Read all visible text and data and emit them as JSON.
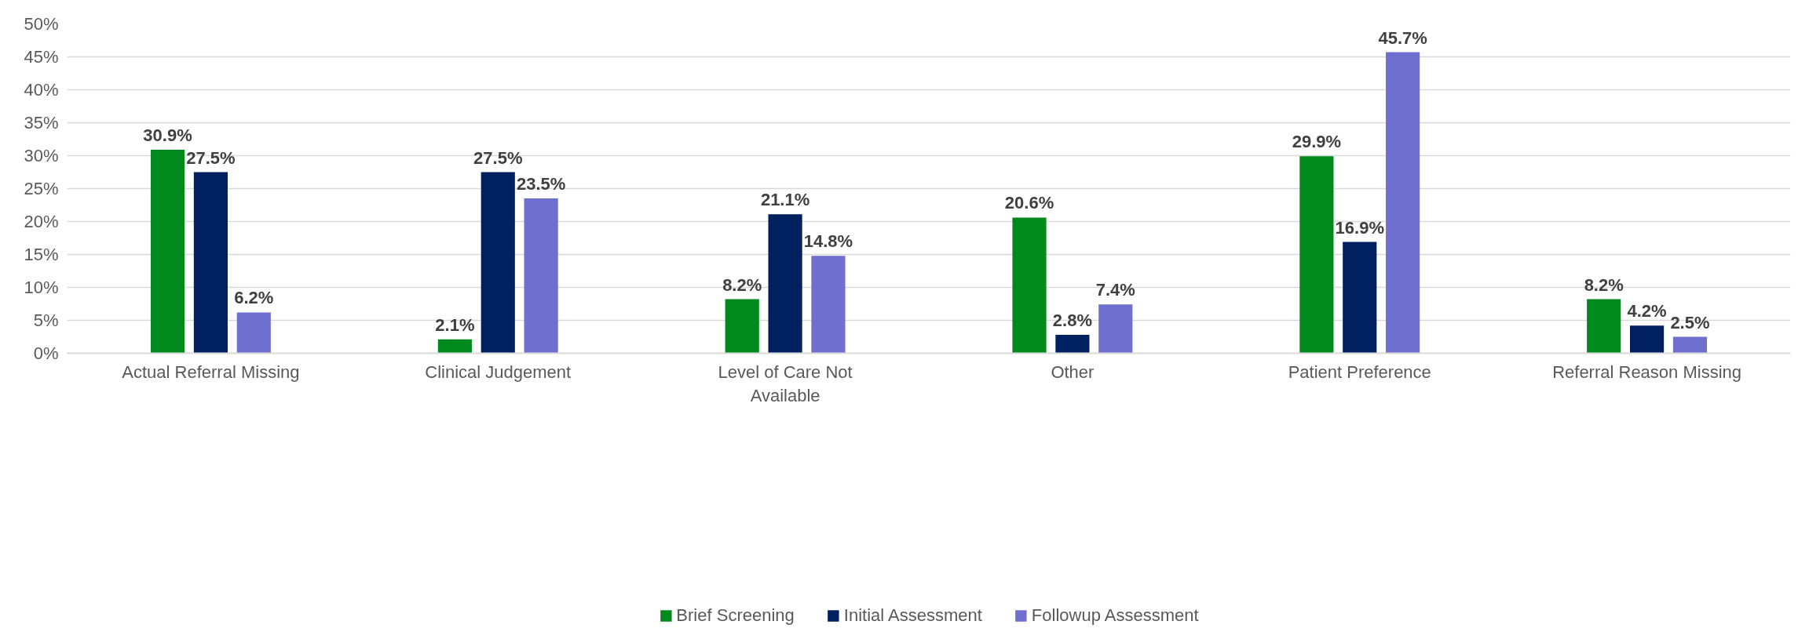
{
  "chart_data": {
    "type": "bar",
    "categories": [
      "Actual Referral Missing",
      "Clinical Judgement",
      "Level of Care Not Available",
      "Other",
      "Patient Preference",
      "Referral Reason Missing"
    ],
    "series": [
      {
        "name": "Brief Screening",
        "color": "#008a1e",
        "values": [
          30.9,
          2.1,
          8.2,
          20.6,
          29.9,
          8.2
        ],
        "value_labels": [
          "30.9%",
          "2.1%",
          "8.2%",
          "20.6%",
          "29.9%",
          "8.2%"
        ]
      },
      {
        "name": "Initial Assessment",
        "color": "#002060",
        "values": [
          27.5,
          27.5,
          21.1,
          2.8,
          16.9,
          4.2
        ],
        "value_labels": [
          "27.5%",
          "27.5%",
          "21.1%",
          "2.8%",
          "16.9%",
          "4.2%"
        ]
      },
      {
        "name": "Followup Assessment",
        "color": "#6f6fd0",
        "values": [
          6.2,
          23.5,
          14.8,
          7.4,
          45.7,
          2.5
        ],
        "value_labels": [
          "6.2%",
          "23.5%",
          "14.8%",
          "7.4%",
          "45.7%",
          "2.5%"
        ]
      }
    ],
    "ylim": [
      0,
      50
    ],
    "yticks": [
      {
        "value": 0,
        "label": "0%"
      },
      {
        "value": 5,
        "label": "5%"
      },
      {
        "value": 10,
        "label": "10%"
      },
      {
        "value": 15,
        "label": "15%"
      },
      {
        "value": 20,
        "label": "20%"
      },
      {
        "value": 25,
        "label": "25%"
      },
      {
        "value": 30,
        "label": "30%"
      },
      {
        "value": 35,
        "label": "35%"
      },
      {
        "value": 40,
        "label": "40%"
      },
      {
        "value": 45,
        "label": "45%"
      },
      {
        "value": 50,
        "label": "50%"
      }
    ],
    "grid": "y",
    "legend": "bottom"
  }
}
